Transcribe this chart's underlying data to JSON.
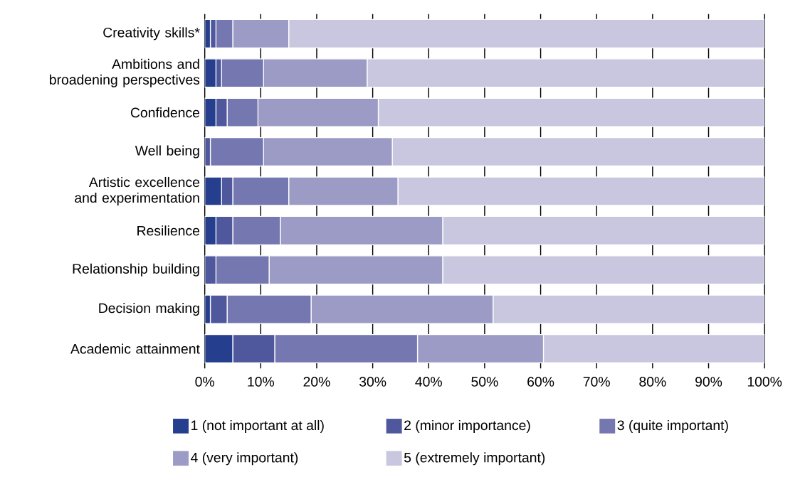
{
  "chart_data": {
    "type": "bar",
    "orientation": "horizontal",
    "stacked": true,
    "categories": [
      "Creativity skills*",
      "Ambitions and broadening perspectives",
      "Confidence",
      "Well being",
      "Artistic excellence and experimentation",
      "Resilience",
      "Relationship building",
      "Decision making",
      "Academic attainment"
    ],
    "series": [
      {
        "name": "1 (not important at all)",
        "color": "#253f8e",
        "values": [
          1,
          2,
          2,
          0,
          3,
          2,
          0,
          1,
          5
        ]
      },
      {
        "name": "2 (minor importance)",
        "color": "#4f589c",
        "values": [
          1,
          1,
          2,
          1,
          2,
          3,
          2,
          3,
          7.5
        ]
      },
      {
        "name": "3 (quite important)",
        "color": "#7577b0",
        "values": [
          3,
          7.5,
          5.5,
          9.5,
          10,
          8.5,
          9.5,
          15,
          25.5
        ]
      },
      {
        "name": "4 (very important)",
        "color": "#9c9bc6",
        "values": [
          10,
          18.5,
          21.5,
          23,
          19.5,
          29,
          31,
          32.5,
          22.5
        ]
      },
      {
        "name": "5 (extremely important)",
        "color": "#c9c7e0",
        "values": [
          85,
          71,
          69,
          66.5,
          65.5,
          57.5,
          57.5,
          48.5,
          39.5
        ]
      }
    ],
    "xlim": [
      0,
      100
    ],
    "xticks": [
      {
        "value": 0,
        "label": "0%"
      },
      {
        "value": 10,
        "label": "10%"
      },
      {
        "value": 20,
        "label": "20%"
      },
      {
        "value": 30,
        "label": "30%"
      },
      {
        "value": 40,
        "label": "40%"
      },
      {
        "value": 50,
        "label": "50%"
      },
      {
        "value": 60,
        "label": "60%"
      },
      {
        "value": 70,
        "label": "70%"
      },
      {
        "value": 80,
        "label": "80%"
      },
      {
        "value": 90,
        "label": "90%"
      },
      {
        "value": 100,
        "label": "100%"
      }
    ],
    "grid": "x",
    "legend": "bottom"
  }
}
